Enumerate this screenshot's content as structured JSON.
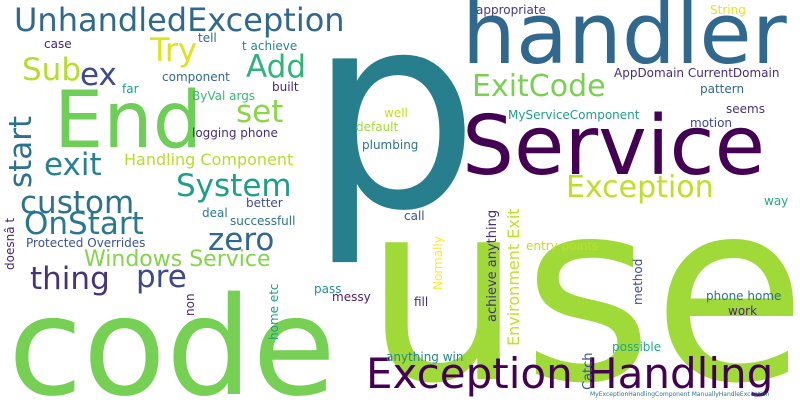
{
  "colors": {
    "dark_purple": "#440154",
    "indigo": "#472c7a",
    "slate_blue": "#3b528b",
    "steel_blue": "#2c728e",
    "teal": "#21918c",
    "sea_green": "#28ae80",
    "green": "#5ec962",
    "light_green": "#7ad151",
    "lime": "#addc30",
    "yellow": "#fde725"
  },
  "words": [
    {
      "text": "use",
      "color": "#a0da39"
    },
    {
      "text": "p",
      "color": "#277f8e"
    },
    {
      "text": "code",
      "color": "#75d054"
    },
    {
      "text": "handler",
      "color": "#31688e"
    },
    {
      "text": "Service",
      "color": "#440154"
    },
    {
      "text": "End",
      "color": "#6ece58"
    },
    {
      "text": "Exception Handling",
      "color": "#440154"
    },
    {
      "text": "UnhandledException",
      "color": "#31688e"
    },
    {
      "text": "ExitCode",
      "color": "#7ad151"
    },
    {
      "text": "Exception",
      "color": "#bddf26"
    },
    {
      "text": "custom",
      "color": "#2c728e"
    },
    {
      "text": "System",
      "color": "#1f9e89"
    },
    {
      "text": "OnStart",
      "color": "#2a788e"
    },
    {
      "text": "zero",
      "color": "#31688e"
    },
    {
      "text": "Try",
      "color": "#dde318"
    },
    {
      "text": "Sub",
      "color": "#b5de2b"
    },
    {
      "text": "ex",
      "color": "#3e4a89"
    },
    {
      "text": "Add",
      "color": "#2fb47c"
    },
    {
      "text": "set",
      "color": "#8bd646"
    },
    {
      "text": "exit",
      "color": "#26828e"
    },
    {
      "text": "start",
      "color": "#2c728e"
    },
    {
      "text": "thing",
      "color": "#46337e"
    },
    {
      "text": "pre",
      "color": "#3e4989"
    },
    {
      "text": "Windows Service",
      "color": "#84d44b"
    },
    {
      "text": "Handling Component",
      "color": "#b5de2b"
    },
    {
      "text": "Environment Exit",
      "color": "#c2df23"
    },
    {
      "text": "achieve anything",
      "color": "#472f7d"
    },
    {
      "text": "Catch",
      "color": "#3b528b"
    },
    {
      "text": "Normally",
      "color": "#fde725"
    },
    {
      "text": "method",
      "color": "#3e4a89"
    },
    {
      "text": "appropriate",
      "color": "#443983"
    },
    {
      "text": "String",
      "color": "#e5e419"
    },
    {
      "text": "tell",
      "color": "#31688e"
    },
    {
      "text": "t achieve",
      "color": "#25848e"
    },
    {
      "text": "case",
      "color": "#482475"
    },
    {
      "text": "component",
      "color": "#31688e"
    },
    {
      "text": "built",
      "color": "#482475"
    },
    {
      "text": "far",
      "color": "#1f9e89"
    },
    {
      "text": "ByVal args",
      "color": "#35b779"
    },
    {
      "text": "AppDomain CurrentDomain",
      "color": "#472c7a"
    },
    {
      "text": "pattern",
      "color": "#31688e"
    },
    {
      "text": "seems",
      "color": "#46327e"
    },
    {
      "text": "MyServiceComponent",
      "color": "#1f9e89"
    },
    {
      "text": "well",
      "color": "#c8e020"
    },
    {
      "text": "motion",
      "color": "#404688"
    },
    {
      "text": "logging phone",
      "color": "#472c7a"
    },
    {
      "text": "default",
      "color": "#a2da37"
    },
    {
      "text": "plumbing",
      "color": "#2c728e"
    },
    {
      "text": "better",
      "color": "#3e4a89"
    },
    {
      "text": "way",
      "color": "#22a884"
    },
    {
      "text": "deal",
      "color": "#2a788e"
    },
    {
      "text": "successfull",
      "color": "#2c728e"
    },
    {
      "text": "call",
      "color": "#3b528b"
    },
    {
      "text": "Protected Overrides",
      "color": "#3b528b"
    },
    {
      "text": "entry points",
      "color": "#bddf26"
    },
    {
      "text": "doesnâ t",
      "color": "#482475"
    },
    {
      "text": "non",
      "color": "#482475"
    },
    {
      "text": "home etc",
      "color": "#1f9e89"
    },
    {
      "text": "pass",
      "color": "#21918c"
    },
    {
      "text": "messy",
      "color": "#481f70"
    },
    {
      "text": "fill",
      "color": "#472c7a"
    },
    {
      "text": "phone home",
      "color": "#2d708e"
    },
    {
      "text": "work",
      "color": "#482475"
    },
    {
      "text": "possible",
      "color": "#22a884"
    },
    {
      "text": "anything win",
      "color": "#24878e"
    },
    {
      "text": "MyExceptionHandlingComponent ManuallyHandleException",
      "color": "#2c728e"
    }
  ]
}
